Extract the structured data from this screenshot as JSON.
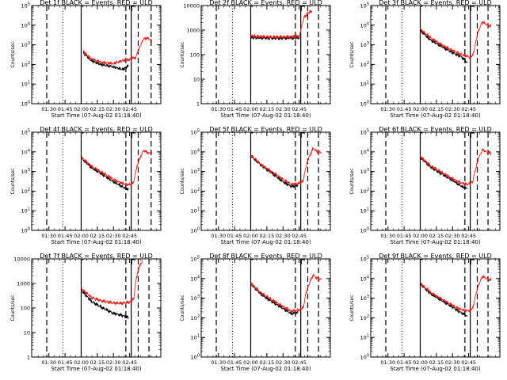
{
  "chart_data": [
    {
      "type": "line",
      "title": "Det 1f BLACK = Events, RED = ULD",
      "xlabel": "Start Time (07-Aug-02 01:18:40)",
      "ylabel": "Counts/sec",
      "xticks": [
        "01:30",
        "01:45",
        "02:00",
        "02:15",
        "02:30",
        "02:45"
      ],
      "ylim": [
        1,
        100000
      ],
      "yticks": [
        "10^0",
        "10^1",
        "10^2",
        "10^3",
        "10^4",
        "10^5"
      ],
      "yscale": "log",
      "series": [
        {
          "color": "#000000",
          "t": [
            2.0,
            9,
            18,
            30,
            39,
            44
          ],
          "y": [
            400,
            160,
            100,
            75,
            55,
            90
          ]
        },
        {
          "color": "#e8231e",
          "t": [
            2.0,
            9,
            18,
            30,
            39,
            44,
            48,
            50,
            55,
            58,
            62,
            66
          ],
          "y": [
            450,
            200,
            130,
            110,
            160,
            170,
            230,
            190,
            900,
            2000,
            2200,
            1500
          ]
        }
      ],
      "solid": [
        0.0,
        46.5
      ],
      "dashed": [
        -32,
        41.5,
        53,
        65
      ],
      "dotted": [
        -17
      ],
      "plot": "p1"
    },
    {
      "type": "line",
      "title": "Det 2f BLACK = Events, RED = ULD",
      "xlabel": "Start Time (07-Aug-02 01:18:40)",
      "ylabel": "Counts/sec",
      "xticks": [
        "01:30",
        "01:45",
        "02:00",
        "02:15",
        "02:30",
        "02:45"
      ],
      "ylim": [
        1,
        10000
      ],
      "yticks": [
        "1",
        "10",
        "100",
        "1000",
        "10000"
      ],
      "yscale": "log",
      "series": [
        {
          "color": "#000000",
          "t": [
            0.2,
            10,
            20,
            30,
            40,
            45.5
          ],
          "y": [
            500,
            480,
            470,
            470,
            480,
            490
          ]
        },
        {
          "color": "#e8231e",
          "t": [
            0.2,
            10,
            20,
            30,
            40,
            45.5,
            48,
            50,
            54,
            57
          ],
          "y": [
            580,
            540,
            520,
            530,
            540,
            560,
            2000,
            3500,
            5200,
            6000
          ]
        }
      ],
      "solid": [
        0.0,
        46.5
      ],
      "dashed": [
        -32,
        41.5,
        53,
        63
      ],
      "dotted": [
        -17
      ],
      "plot": "p2"
    },
    {
      "type": "line",
      "title": "Det 3f BLACK = Events, RED = ULD",
      "xlabel": "Start Time (07-Aug-02 01:18:40)",
      "ylabel": "Counts/sec",
      "xticks": [
        "01:30",
        "01:45",
        "02:00",
        "02:15",
        "02:30",
        "02:45"
      ],
      "ylim": [
        1,
        100000
      ],
      "yticks": [
        "10^0",
        "10^1",
        "10^2",
        "10^3",
        "10^4",
        "10^5"
      ],
      "yscale": "log",
      "series": [
        {
          "color": "#000000",
          "t": [
            0.5,
            10,
            20,
            30,
            38,
            44
          ],
          "y": [
            5000,
            1700,
            800,
            400,
            250,
            120
          ]
        },
        {
          "color": "#e8231e",
          "t": [
            0.5,
            10,
            20,
            30,
            38,
            44,
            46,
            49,
            51,
            54,
            58,
            62,
            66
          ],
          "y": [
            6000,
            2200,
            1000,
            520,
            320,
            260,
            230,
            300,
            1000,
            5000,
            15000,
            10000,
            9000
          ]
        }
      ],
      "solid": [
        0.0,
        46.5
      ],
      "dashed": [
        -32,
        41.5,
        53,
        63
      ],
      "dotted": [
        -17
      ],
      "plot": "p3"
    },
    {
      "type": "line",
      "title": "Det 4f BLACK = Events, RED = ULD",
      "xlabel": "Start Time (07-Aug-02 01:18:40)",
      "ylabel": "Counts/sec",
      "xticks": [
        "01:30",
        "01:45",
        "02:00",
        "02:15",
        "02:30",
        "02:45"
      ],
      "ylim": [
        1,
        100000
      ],
      "yticks": [
        "10^0",
        "10^1",
        "10^2",
        "10^3",
        "10^4",
        "10^5"
      ],
      "yscale": "log",
      "series": [
        {
          "color": "#000000",
          "t": [
            0.5,
            10,
            20,
            30,
            38,
            44
          ],
          "y": [
            4500,
            1500,
            700,
            300,
            170,
            120
          ]
        },
        {
          "color": "#e8231e",
          "t": [
            0.5,
            10,
            20,
            30,
            38,
            44,
            46,
            49,
            51,
            54,
            58,
            62,
            66
          ],
          "y": [
            5000,
            1800,
            850,
            400,
            250,
            210,
            220,
            300,
            1200,
            4000,
            12000,
            9000,
            8000
          ]
        }
      ],
      "solid": [
        0.0,
        46.5
      ],
      "dashed": [
        -32,
        41.5,
        53,
        65
      ],
      "dotted": [
        -17
      ],
      "plot": "p4"
    },
    {
      "type": "line",
      "title": "Det 5f BLACK = Events, RED = ULD",
      "xlabel": "Start Time (07-Aug-02 01:18:40)",
      "ylabel": "Counts/sec",
      "xticks": [
        "01:30",
        "01:45",
        "02:00",
        "02:15",
        "02:30",
        "02:45"
      ],
      "ylim": [
        1,
        100000
      ],
      "yticks": [
        "10^0",
        "10^1",
        "10^2",
        "10^3",
        "10^4",
        "10^5"
      ],
      "yscale": "log",
      "series": [
        {
          "color": "#000000",
          "t": [
            0.5,
            10,
            20,
            30,
            38,
            44
          ],
          "y": [
            6000,
            2000,
            800,
            300,
            170,
            200
          ]
        },
        {
          "color": "#e8231e",
          "t": [
            0.5,
            10,
            20,
            30,
            38,
            44,
            46,
            49,
            51,
            54,
            58,
            62,
            66
          ],
          "y": [
            6500,
            2200,
            950,
            400,
            220,
            250,
            260,
            350,
            1500,
            5000,
            15000,
            10000,
            9000
          ]
        }
      ],
      "solid": [
        0.0,
        46.5
      ],
      "dashed": [
        -32,
        41.5,
        53,
        63
      ],
      "dotted": [
        -17
      ],
      "plot": "p5"
    },
    {
      "type": "line",
      "title": "Det 6f BLACK = Events, RED = ULD",
      "xlabel": "Start Time (07-Aug-02 01:18:40)",
      "ylabel": "Counts/sec",
      "xticks": [
        "01:30",
        "01:45",
        "02:00",
        "02:15",
        "02:30",
        "02:45"
      ],
      "ylim": [
        1,
        100000
      ],
      "yticks": [
        "10^0",
        "10^1",
        "10^2",
        "10^3",
        "10^4",
        "10^5"
      ],
      "yscale": "log",
      "series": [
        {
          "color": "#000000",
          "t": [
            0.5,
            10,
            20,
            30,
            38,
            44
          ],
          "y": [
            5000,
            1600,
            750,
            350,
            180,
            130
          ]
        },
        {
          "color": "#e8231e",
          "t": [
            0.5,
            10,
            20,
            30,
            38,
            44,
            46,
            49,
            51,
            54,
            58,
            62,
            66
          ],
          "y": [
            5500,
            1900,
            900,
            430,
            260,
            220,
            240,
            320,
            1100,
            4500,
            13000,
            9500,
            8500
          ]
        }
      ],
      "solid": [
        0.0,
        46.5
      ],
      "dashed": [
        -32,
        41.5,
        53,
        63
      ],
      "dotted": [
        -17
      ],
      "plot": "p6"
    },
    {
      "type": "line",
      "title": "Det 7f BLACK = Events, RED = ULD",
      "xlabel": "Start Time (07-Aug-02 01:18:40)",
      "ylabel": "Counts/sec",
      "xticks": [
        "01:30",
        "01:45",
        "02:00",
        "02:15",
        "02:30",
        "02:45"
      ],
      "ylim": [
        1,
        10000
      ],
      "yticks": [
        "1",
        "10",
        "100",
        "1000",
        "10000"
      ],
      "yscale": "log",
      "series": [
        {
          "color": "#000000",
          "t": [
            0.5,
            10,
            20,
            30,
            38,
            44
          ],
          "y": [
            500,
            180,
            100,
            60,
            50,
            40
          ]
        },
        {
          "color": "#e8231e",
          "t": [
            0.5,
            10,
            20,
            30,
            38,
            44,
            46,
            49,
            51,
            54,
            57
          ],
          "y": [
            600,
            260,
            190,
            160,
            155,
            170,
            180,
            250,
            1500,
            5000,
            8000
          ]
        }
      ],
      "solid": [
        0.0,
        46.5
      ],
      "dashed": [
        -32,
        41.5,
        53,
        63
      ],
      "dotted": [
        -17
      ],
      "plot": "p7"
    },
    {
      "type": "line",
      "title": "Det 8f BLACK = Events, RED = ULD",
      "xlabel": "Start Time (07-Aug-02 01:18:40)",
      "ylabel": "Counts/sec",
      "xticks": [
        "01:30",
        "01:45",
        "02:00",
        "02:15",
        "02:30",
        "02:45"
      ],
      "ylim": [
        1,
        100000
      ],
      "yticks": [
        "10^0",
        "10^1",
        "10^2",
        "10^3",
        "10^4",
        "10^5"
      ],
      "yscale": "log",
      "series": [
        {
          "color": "#000000",
          "t": [
            0.5,
            10,
            20,
            30,
            38,
            44
          ],
          "y": [
            5000,
            1500,
            650,
            300,
            160,
            190
          ]
        },
        {
          "color": "#e8231e",
          "t": [
            0.5,
            10,
            20,
            30,
            38,
            44,
            46,
            49,
            51,
            54,
            58,
            62,
            66
          ],
          "y": [
            5500,
            1800,
            800,
            380,
            220,
            250,
            260,
            350,
            1500,
            5000,
            15000,
            10000,
            9000
          ]
        }
      ],
      "solid": [
        0.0,
        46.5
      ],
      "dashed": [
        -32,
        41.5,
        53,
        63
      ],
      "dotted": [
        -17
      ],
      "plot": "p8"
    },
    {
      "type": "line",
      "title": "Det 9f BLACK = Events, RED = ULD",
      "xlabel": "Start Time (07-Aug-02 01:18:40)",
      "ylabel": "Counts/sec",
      "xticks": [
        "01:30",
        "01:45",
        "02:00",
        "02:15",
        "02:30",
        "02:45"
      ],
      "ylim": [
        1,
        100000
      ],
      "yticks": [
        "10^0",
        "10^1",
        "10^2",
        "10^3",
        "10^4",
        "10^5"
      ],
      "yscale": "log",
      "series": [
        {
          "color": "#000000",
          "t": [
            0.5,
            10,
            20,
            30,
            38,
            44
          ],
          "y": [
            5000,
            1600,
            750,
            350,
            180,
            120
          ]
        },
        {
          "color": "#e8231e",
          "t": [
            0.5,
            10,
            20,
            30,
            38,
            44,
            46,
            49,
            51,
            54,
            58,
            62,
            66
          ],
          "y": [
            5500,
            1900,
            900,
            430,
            260,
            230,
            240,
            320,
            1100,
            4500,
            13000,
            9500,
            8500
          ]
        }
      ],
      "solid": [
        0.0,
        46.5
      ],
      "dashed": [
        -32,
        41.5,
        53,
        63
      ],
      "dotted": [
        -17
      ],
      "plot": "p9"
    }
  ]
}
